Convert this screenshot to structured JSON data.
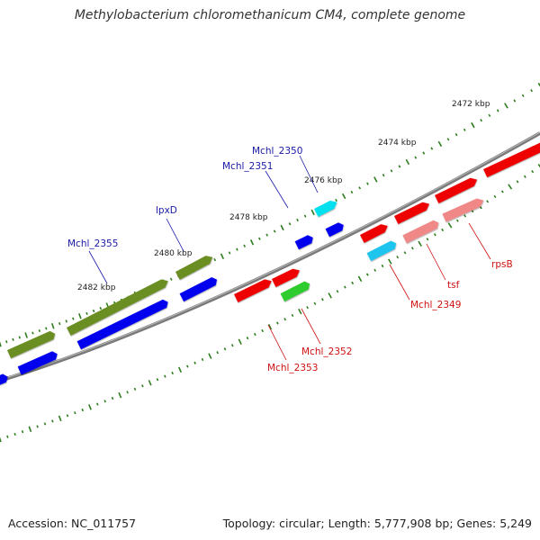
{
  "title": "Methylobacterium chloromethanicum CM4, complete genome",
  "footer": {
    "accession": "Accession: NC_011757",
    "topology": "Topology: circular; Length: 5,777,908 bp; Genes: 5,249"
  },
  "colors": {
    "backbone": "#808080",
    "ticks": "#2e7d1e",
    "label_blue": "#1a1aa6",
    "label_red": "#d01010",
    "gene_red": "#ff0000",
    "gene_pink": "#f08a8a",
    "gene_olive": "#6b8e23",
    "gene_blue": "#0000ff",
    "gene_cyan": "#00e5f0",
    "gene_skyblue": "#1ec4ee",
    "gene_green": "#2ecc2e"
  },
  "scale_labels": [
    "2472 kbp",
    "2474 kbp",
    "2476 kbp",
    "2478 kbp",
    "2480 kbp",
    "2482 kbp"
  ],
  "gene_labels": {
    "blue": [
      "Mchl_2350",
      "Mchl_2351",
      "lpxD",
      "Mchl_2355"
    ],
    "red": [
      "rpsB",
      "tsf",
      "Mchl_2349",
      "Mchl_2352",
      "Mchl_2353"
    ]
  }
}
